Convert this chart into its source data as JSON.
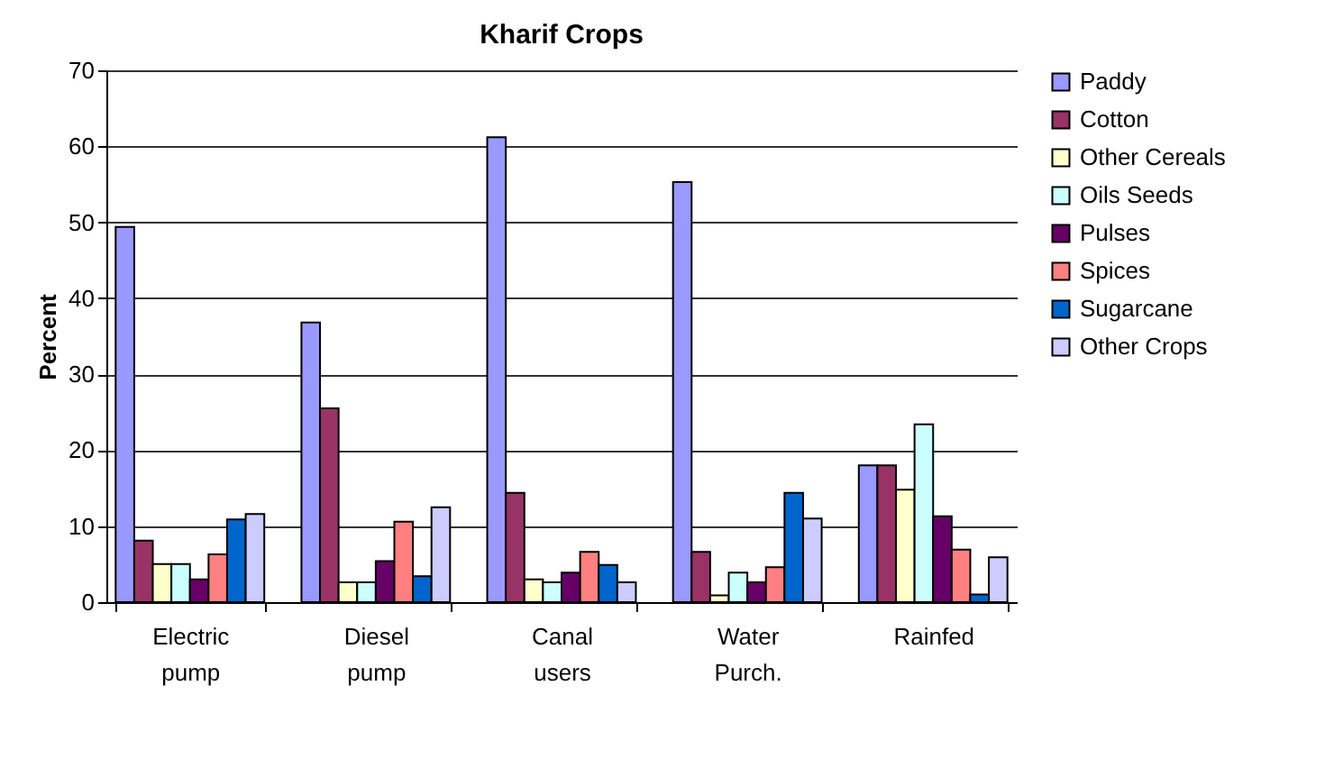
{
  "chart_data": {
    "type": "bar",
    "title": "Kharif Crops",
    "ylabel": "Percent",
    "categories": [
      "Electric pump",
      "Diesel pump",
      "Canal users",
      "Water Purch.",
      "Rainfed"
    ],
    "series": [
      {
        "name": "Paddy",
        "color": "#9999ff",
        "values": [
          49.4,
          36.8,
          61.2,
          55.3,
          18.0
        ]
      },
      {
        "name": "Cotton",
        "color": "#993366",
        "values": [
          8.1,
          25.5,
          14.4,
          6.6,
          18.0
        ]
      },
      {
        "name": "Other Cereals",
        "color": "#ffffcc",
        "values": [
          5.0,
          2.6,
          3.0,
          0.9,
          14.8
        ]
      },
      {
        "name": "Oils Seeds",
        "color": "#ccffff",
        "values": [
          5.0,
          2.6,
          2.6,
          3.9,
          23.4
        ]
      },
      {
        "name": "Pulses",
        "color": "#660066",
        "values": [
          3.0,
          5.4,
          3.9,
          2.6,
          11.3
        ]
      },
      {
        "name": "Spices",
        "color": "#ff8080",
        "values": [
          6.3,
          10.6,
          6.6,
          4.6,
          6.9
        ]
      },
      {
        "name": "Sugarcane",
        "color": "#0066cc",
        "values": [
          10.9,
          3.4,
          4.9,
          14.4,
          1.0
        ]
      },
      {
        "name": "Other Crops",
        "color": "#ccccff",
        "values": [
          11.6,
          12.5,
          2.6,
          11.0,
          5.9
        ]
      }
    ],
    "ylim": [
      0,
      70
    ],
    "yticks": [
      0,
      10,
      20,
      30,
      40,
      50,
      60,
      70
    ],
    "grid": "y",
    "legend": "right"
  }
}
